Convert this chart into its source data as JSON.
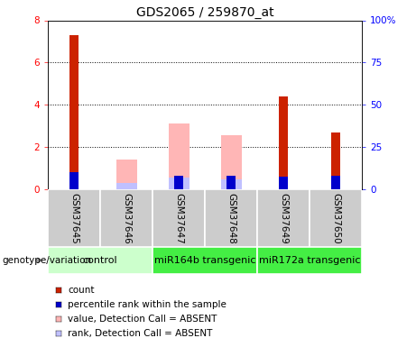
{
  "title": "GDS2065 / 259870_at",
  "samples": [
    "GSM37645",
    "GSM37646",
    "GSM37647",
    "GSM37648",
    "GSM37649",
    "GSM37650"
  ],
  "red_bars": [
    7.3,
    0.0,
    0.0,
    0.0,
    4.4,
    2.7
  ],
  "blue_bars": [
    0.8,
    0.0,
    0.65,
    0.65,
    0.6,
    0.65
  ],
  "pink_bars": [
    0.0,
    1.4,
    3.1,
    2.55,
    0.0,
    0.0
  ],
  "lightblue_bars": [
    0.0,
    0.3,
    0.55,
    0.45,
    0.0,
    0.0
  ],
  "ylim_left": [
    0,
    8
  ],
  "ylim_right": [
    0,
    100
  ],
  "yticks_left": [
    0,
    2,
    4,
    6,
    8
  ],
  "yticks_right": [
    0,
    25,
    50,
    75,
    100
  ],
  "ytick_labels_right": [
    "0",
    "25",
    "50",
    "75",
    "100%"
  ],
  "grid_lines": [
    2,
    4,
    6
  ],
  "bar_width": 0.18,
  "red_color": "#cc2200",
  "blue_color": "#0000cc",
  "pink_color": "#ffb6b6",
  "lightblue_color": "#c0c0ff",
  "sample_bg_color": "#cccccc",
  "group_colors": [
    "#ccffcc",
    "#44ee44",
    "#44ee44"
  ],
  "group_defs": [
    {
      "label": "control",
      "start": 0,
      "end": 2
    },
    {
      "label": "miR164b transgenic",
      "start": 2,
      "end": 4
    },
    {
      "label": "miR172a transgenic",
      "start": 4,
      "end": 6
    }
  ],
  "legend_items": [
    {
      "label": "count",
      "color": "#cc2200"
    },
    {
      "label": "percentile rank within the sample",
      "color": "#0000cc"
    },
    {
      "label": "value, Detection Call = ABSENT",
      "color": "#ffb6b6"
    },
    {
      "label": "rank, Detection Call = ABSENT",
      "color": "#c0c0ff"
    }
  ],
  "genotype_label": "genotype/variation",
  "title_fontsize": 10,
  "tick_fontsize": 7.5,
  "legend_fontsize": 7.5,
  "sample_fontsize": 7.5,
  "group_fontsize": 8
}
